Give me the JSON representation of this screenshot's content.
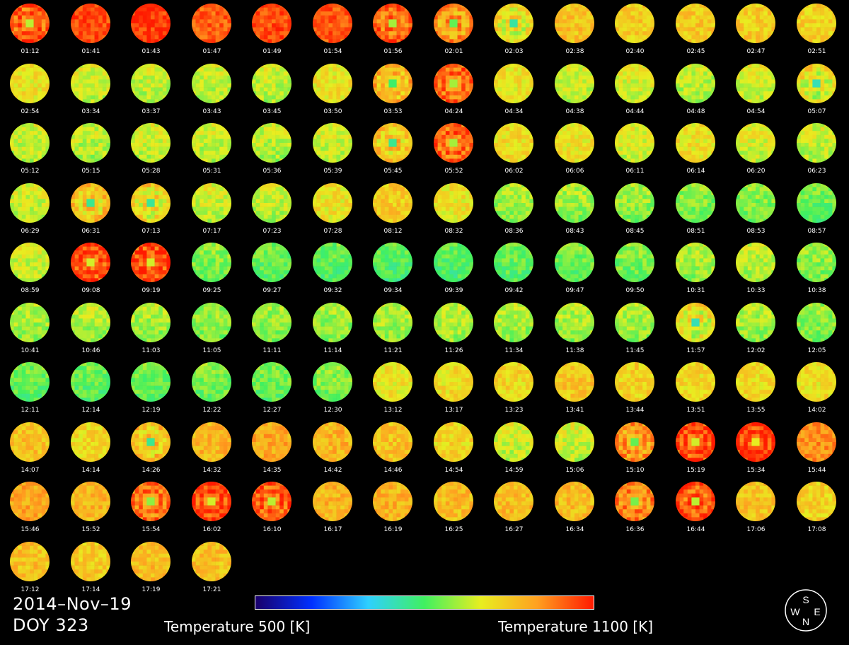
{
  "header": {
    "date": "2014–Nov–19",
    "doy": "DOY 323"
  },
  "colorbar": {
    "min_label": "Temperature 500 [K]",
    "max_label": "Temperature 1100 [K]",
    "gradient_colors": [
      "#1a006a",
      "#0030ff",
      "#2fd0ff",
      "#40f060",
      "#e8ee20",
      "#ffa020",
      "#ff1a00"
    ]
  },
  "compass": {
    "north": "N",
    "south": "S",
    "east": "E",
    "west": "W"
  },
  "images": [
    {
      "time": "01:12",
      "level": 0.88,
      "rings": 2
    },
    {
      "time": "01:41",
      "level": 0.94,
      "rings": 0
    },
    {
      "time": "01:43",
      "level": 0.96,
      "rings": 0
    },
    {
      "time": "01:47",
      "level": 0.92,
      "rings": 0
    },
    {
      "time": "01:49",
      "level": 0.94,
      "rings": 0
    },
    {
      "time": "01:54",
      "level": 0.93,
      "rings": 0
    },
    {
      "time": "01:56",
      "level": 0.86,
      "rings": 1
    },
    {
      "time": "02:01",
      "level": 0.8,
      "rings": 1
    },
    {
      "time": "02:03",
      "level": 0.7,
      "rings": 1
    },
    {
      "time": "02:38",
      "level": 0.78,
      "rings": 0
    },
    {
      "time": "02:40",
      "level": 0.76,
      "rings": 0
    },
    {
      "time": "02:45",
      "level": 0.77,
      "rings": 0
    },
    {
      "time": "02:47",
      "level": 0.76,
      "rings": 0
    },
    {
      "time": "02:51",
      "level": 0.75,
      "rings": 0
    },
    {
      "time": "02:54",
      "level": 0.72,
      "rings": 0
    },
    {
      "time": "03:34",
      "level": 0.7,
      "rings": 0
    },
    {
      "time": "03:37",
      "level": 0.69,
      "rings": 0
    },
    {
      "time": "03:43",
      "level": 0.69,
      "rings": 0
    },
    {
      "time": "03:45",
      "level": 0.69,
      "rings": 0
    },
    {
      "time": "03:50",
      "level": 0.72,
      "rings": 0
    },
    {
      "time": "03:53",
      "level": 0.76,
      "rings": 2
    },
    {
      "time": "04:24",
      "level": 0.86,
      "rings": 2
    },
    {
      "time": "04:34",
      "level": 0.72,
      "rings": 0
    },
    {
      "time": "04:38",
      "level": 0.7,
      "rings": 0
    },
    {
      "time": "04:44",
      "level": 0.71,
      "rings": 0
    },
    {
      "time": "04:48",
      "level": 0.68,
      "rings": 0
    },
    {
      "time": "04:54",
      "level": 0.71,
      "rings": 0
    },
    {
      "time": "05:07",
      "level": 0.68,
      "rings": 1
    },
    {
      "time": "05:12",
      "level": 0.69,
      "rings": 0
    },
    {
      "time": "05:15",
      "level": 0.68,
      "rings": 0
    },
    {
      "time": "05:28",
      "level": 0.7,
      "rings": 0
    },
    {
      "time": "05:31",
      "level": 0.69,
      "rings": 0
    },
    {
      "time": "05:36",
      "level": 0.68,
      "rings": 0
    },
    {
      "time": "05:39",
      "level": 0.7,
      "rings": 0
    },
    {
      "time": "05:45",
      "level": 0.72,
      "rings": 1
    },
    {
      "time": "05:52",
      "level": 0.86,
      "rings": 2
    },
    {
      "time": "06:02",
      "level": 0.73,
      "rings": 0
    },
    {
      "time": "06:06",
      "level": 0.72,
      "rings": 0
    },
    {
      "time": "06:11",
      "level": 0.71,
      "rings": 0
    },
    {
      "time": "06:14",
      "level": 0.72,
      "rings": 0
    },
    {
      "time": "06:20",
      "level": 0.71,
      "rings": 0
    },
    {
      "time": "06:23",
      "level": 0.69,
      "rings": 0
    },
    {
      "time": "06:29",
      "level": 0.7,
      "rings": 0
    },
    {
      "time": "06:31",
      "level": 0.72,
      "rings": 1
    },
    {
      "time": "07:13",
      "level": 0.71,
      "rings": 1
    },
    {
      "time": "07:17",
      "level": 0.7,
      "rings": 0
    },
    {
      "time": "07:23",
      "level": 0.69,
      "rings": 0
    },
    {
      "time": "07:28",
      "level": 0.72,
      "rings": 0
    },
    {
      "time": "08:12",
      "level": 0.76,
      "rings": 0
    },
    {
      "time": "08:32",
      "level": 0.72,
      "rings": 0
    },
    {
      "time": "08:36",
      "level": 0.65,
      "rings": 0
    },
    {
      "time": "08:43",
      "level": 0.65,
      "rings": 0
    },
    {
      "time": "08:45",
      "level": 0.65,
      "rings": 0
    },
    {
      "time": "08:51",
      "level": 0.63,
      "rings": 0
    },
    {
      "time": "08:53",
      "level": 0.63,
      "rings": 0
    },
    {
      "time": "08:57",
      "level": 0.61,
      "rings": 0
    },
    {
      "time": "08:59",
      "level": 0.7,
      "rings": 0
    },
    {
      "time": "09:08",
      "level": 0.9,
      "rings": 2
    },
    {
      "time": "09:19",
      "level": 0.9,
      "rings": 3
    },
    {
      "time": "09:25",
      "level": 0.63,
      "rings": 0
    },
    {
      "time": "09:27",
      "level": 0.6,
      "rings": 0
    },
    {
      "time": "09:32",
      "level": 0.59,
      "rings": 0
    },
    {
      "time": "09:34",
      "level": 0.58,
      "rings": 0
    },
    {
      "time": "09:39",
      "level": 0.58,
      "rings": 0
    },
    {
      "time": "09:42",
      "level": 0.6,
      "rings": 0
    },
    {
      "time": "09:47",
      "level": 0.61,
      "rings": 0
    },
    {
      "time": "09:50",
      "level": 0.62,
      "rings": 0
    },
    {
      "time": "10:31",
      "level": 0.66,
      "rings": 0
    },
    {
      "time": "10:33",
      "level": 0.68,
      "rings": 0
    },
    {
      "time": "10:38",
      "level": 0.64,
      "rings": 0
    },
    {
      "time": "10:41",
      "level": 0.66,
      "rings": 0
    },
    {
      "time": "10:46",
      "level": 0.67,
      "rings": 0
    },
    {
      "time": "11:03",
      "level": 0.66,
      "rings": 0
    },
    {
      "time": "11:05",
      "level": 0.64,
      "rings": 0
    },
    {
      "time": "11:11",
      "level": 0.64,
      "rings": 0
    },
    {
      "time": "11:14",
      "level": 0.65,
      "rings": 0
    },
    {
      "time": "11:21",
      "level": 0.66,
      "rings": 0
    },
    {
      "time": "11:26",
      "level": 0.67,
      "rings": 0
    },
    {
      "time": "11:34",
      "level": 0.66,
      "rings": 0
    },
    {
      "time": "11:38",
      "level": 0.66,
      "rings": 0
    },
    {
      "time": "11:45",
      "level": 0.66,
      "rings": 0
    },
    {
      "time": "11:57",
      "level": 0.68,
      "rings": 1
    },
    {
      "time": "12:02",
      "level": 0.66,
      "rings": 0
    },
    {
      "time": "12:05",
      "level": 0.64,
      "rings": 0
    },
    {
      "time": "12:11",
      "level": 0.6,
      "rings": 0
    },
    {
      "time": "12:14",
      "level": 0.6,
      "rings": 0
    },
    {
      "time": "12:19",
      "level": 0.61,
      "rings": 0
    },
    {
      "time": "12:22",
      "level": 0.62,
      "rings": 0
    },
    {
      "time": "12:27",
      "level": 0.61,
      "rings": 0
    },
    {
      "time": "12:30",
      "level": 0.63,
      "rings": 0
    },
    {
      "time": "13:12",
      "level": 0.72,
      "rings": 0
    },
    {
      "time": "13:17",
      "level": 0.73,
      "rings": 0
    },
    {
      "time": "13:23",
      "level": 0.74,
      "rings": 0
    },
    {
      "time": "13:41",
      "level": 0.77,
      "rings": 0
    },
    {
      "time": "13:44",
      "level": 0.75,
      "rings": 0
    },
    {
      "time": "13:51",
      "level": 0.74,
      "rings": 0
    },
    {
      "time": "13:55",
      "level": 0.74,
      "rings": 0
    },
    {
      "time": "14:02",
      "level": 0.73,
      "rings": 0
    },
    {
      "time": "14:07",
      "level": 0.78,
      "rings": 0
    },
    {
      "time": "14:14",
      "level": 0.74,
      "rings": 0
    },
    {
      "time": "14:26",
      "level": 0.72,
      "rings": 1
    },
    {
      "time": "14:32",
      "level": 0.8,
      "rings": 0
    },
    {
      "time": "14:35",
      "level": 0.82,
      "rings": 0
    },
    {
      "time": "14:42",
      "level": 0.8,
      "rings": 0
    },
    {
      "time": "14:46",
      "level": 0.78,
      "rings": 0
    },
    {
      "time": "14:54",
      "level": 0.74,
      "rings": 0
    },
    {
      "time": "14:59",
      "level": 0.7,
      "rings": 0
    },
    {
      "time": "15:06",
      "level": 0.7,
      "rings": 0
    },
    {
      "time": "15:10",
      "level": 0.8,
      "rings": 2
    },
    {
      "time": "15:19",
      "level": 0.9,
      "rings": 2
    },
    {
      "time": "15:34",
      "level": 0.92,
      "rings": 2
    },
    {
      "time": "15:44",
      "level": 0.86,
      "rings": 0
    },
    {
      "time": "15:46",
      "level": 0.82,
      "rings": 0
    },
    {
      "time": "15:52",
      "level": 0.8,
      "rings": 0
    },
    {
      "time": "15:54",
      "level": 0.84,
      "rings": 2
    },
    {
      "time": "16:02",
      "level": 0.9,
      "rings": 2
    },
    {
      "time": "16:10",
      "level": 0.88,
      "rings": 2
    },
    {
      "time": "16:17",
      "level": 0.8,
      "rings": 0
    },
    {
      "time": "16:19",
      "level": 0.8,
      "rings": 0
    },
    {
      "time": "16:25",
      "level": 0.79,
      "rings": 0
    },
    {
      "time": "16:27",
      "level": 0.79,
      "rings": 0
    },
    {
      "time": "16:34",
      "level": 0.79,
      "rings": 0
    },
    {
      "time": "16:36",
      "level": 0.82,
      "rings": 2
    },
    {
      "time": "16:44",
      "level": 0.88,
      "rings": 1
    },
    {
      "time": "17:06",
      "level": 0.78,
      "rings": 0
    },
    {
      "time": "17:08",
      "level": 0.75,
      "rings": 0
    },
    {
      "time": "17:12",
      "level": 0.78,
      "rings": 0
    },
    {
      "time": "17:14",
      "level": 0.76,
      "rings": 0
    },
    {
      "time": "17:19",
      "level": 0.79,
      "rings": 0
    },
    {
      "time": "17:21",
      "level": 0.78,
      "rings": 0
    }
  ]
}
